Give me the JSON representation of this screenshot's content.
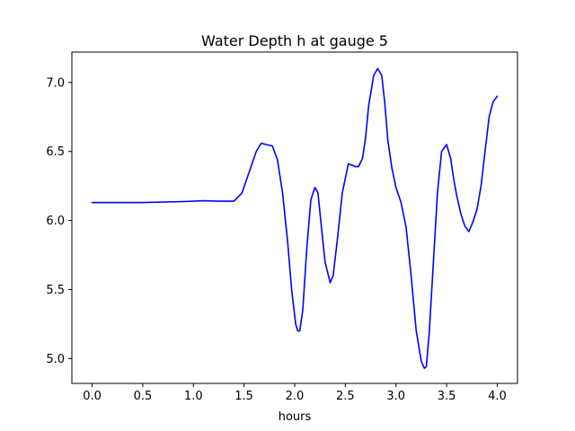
{
  "chart_data": {
    "type": "line",
    "title": "Water Depth h at gauge 5",
    "xlabel": "hours",
    "ylabel": "",
    "xlim": [
      -0.2,
      4.2
    ],
    "ylim": [
      4.82,
      7.22
    ],
    "xticks": [
      0.0,
      0.5,
      1.0,
      1.5,
      2.0,
      2.5,
      3.0,
      3.5,
      4.0
    ],
    "xtick_labels": [
      "0.0",
      "0.5",
      "1.0",
      "1.5",
      "2.0",
      "2.5",
      "3.0",
      "3.5",
      "4.0"
    ],
    "yticks": [
      5.0,
      5.5,
      6.0,
      6.5,
      7.0
    ],
    "ytick_labels": [
      "5.0",
      "5.5",
      "6.0",
      "6.5",
      "7.0"
    ],
    "grid": false,
    "series": [
      {
        "color": "#0000ff",
        "x": [
          0.0,
          0.5,
          0.9,
          1.1,
          1.25,
          1.4,
          1.48,
          1.55,
          1.62,
          1.67,
          1.72,
          1.78,
          1.83,
          1.88,
          1.93,
          1.97,
          2.01,
          2.03,
          2.05,
          2.08,
          2.12,
          2.16,
          2.2,
          2.23,
          2.26,
          2.3,
          2.35,
          2.38,
          2.42,
          2.47,
          2.53,
          2.57,
          2.6,
          2.63,
          2.67,
          2.7,
          2.73,
          2.78,
          2.82,
          2.86,
          2.89,
          2.92,
          2.96,
          3.0,
          3.05,
          3.1,
          3.15,
          3.2,
          3.25,
          3.28,
          3.3,
          3.33,
          3.37,
          3.41,
          3.45,
          3.5,
          3.54,
          3.57,
          3.6,
          3.64,
          3.68,
          3.72,
          3.76,
          3.8,
          3.84,
          3.88,
          3.92,
          3.96,
          4.0
        ],
        "y": [
          6.13,
          6.13,
          6.137,
          6.143,
          6.14,
          6.14,
          6.2,
          6.35,
          6.5,
          6.56,
          6.55,
          6.54,
          6.44,
          6.2,
          5.85,
          5.5,
          5.25,
          5.2,
          5.2,
          5.35,
          5.8,
          6.15,
          6.24,
          6.2,
          5.98,
          5.7,
          5.55,
          5.6,
          5.85,
          6.2,
          6.41,
          6.4,
          6.39,
          6.39,
          6.45,
          6.6,
          6.83,
          7.05,
          7.1,
          7.05,
          6.85,
          6.58,
          6.38,
          6.24,
          6.13,
          5.95,
          5.6,
          5.2,
          4.98,
          4.93,
          4.94,
          5.2,
          5.7,
          6.2,
          6.5,
          6.55,
          6.45,
          6.3,
          6.18,
          6.05,
          5.96,
          5.92,
          5.99,
          6.08,
          6.25,
          6.5,
          6.75,
          6.86,
          6.9
        ]
      }
    ]
  }
}
